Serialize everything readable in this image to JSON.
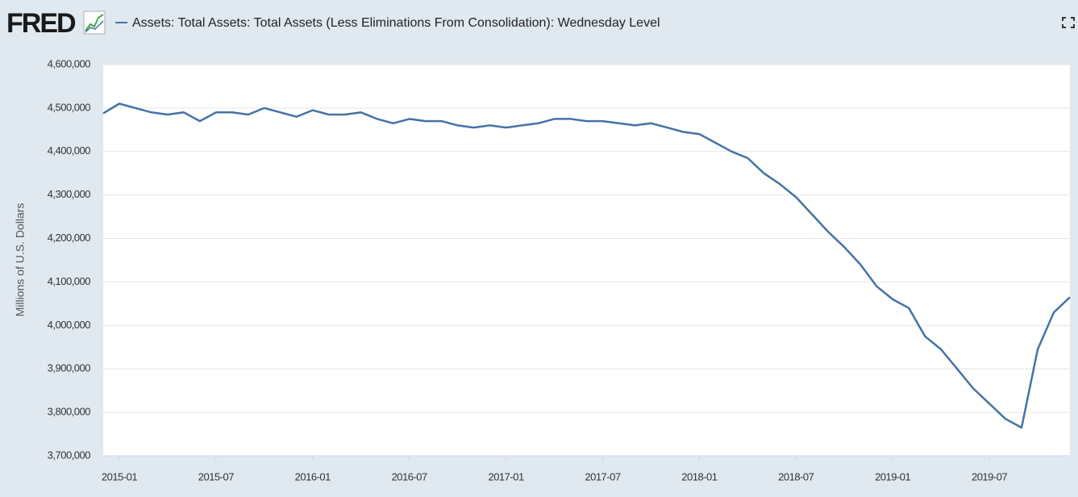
{
  "chart_data": {
    "type": "line",
    "logo": "FRED",
    "y_label": "Millions of U.S. Dollars",
    "x": [
      "2014-12",
      "2015-01",
      "2015-02",
      "2015-03",
      "2015-04",
      "2015-05",
      "2015-06",
      "2015-07",
      "2015-08",
      "2015-09",
      "2015-10",
      "2015-11",
      "2015-12",
      "2016-01",
      "2016-02",
      "2016-03",
      "2016-04",
      "2016-05",
      "2016-06",
      "2016-07",
      "2016-08",
      "2016-09",
      "2016-10",
      "2016-11",
      "2016-12",
      "2017-01",
      "2017-02",
      "2017-03",
      "2017-04",
      "2017-05",
      "2017-06",
      "2017-07",
      "2017-08",
      "2017-09",
      "2017-10",
      "2017-11",
      "2017-12",
      "2018-01",
      "2018-02",
      "2018-03",
      "2018-04",
      "2018-05",
      "2018-06",
      "2018-07",
      "2018-08",
      "2018-09",
      "2018-10",
      "2018-11",
      "2018-12",
      "2019-01",
      "2019-02",
      "2019-03",
      "2019-04",
      "2019-05",
      "2019-06",
      "2019-07",
      "2019-08",
      "2019-09",
      "2019-10",
      "2019-11",
      "2019-12"
    ],
    "series": [
      {
        "name": "Assets: Total Assets: Total Assets (Less Eliminations From Consolidation): Wednesday Level",
        "color": "#4572a7",
        "values": [
          4488000,
          4510000,
          4500000,
          4490000,
          4485000,
          4490000,
          4470000,
          4490000,
          4490000,
          4485000,
          4500000,
          4490000,
          4480000,
          4495000,
          4485000,
          4485000,
          4490000,
          4475000,
          4465000,
          4475000,
          4470000,
          4470000,
          4460000,
          4455000,
          4460000,
          4455000,
          4460000,
          4465000,
          4475000,
          4475000,
          4470000,
          4470000,
          4465000,
          4460000,
          4465000,
          4455000,
          4445000,
          4440000,
          4420000,
          4400000,
          4385000,
          4350000,
          4325000,
          4295000,
          4255000,
          4215000,
          4180000,
          4140000,
          4090000,
          4060000,
          4040000,
          3975000,
          3945000,
          3900000,
          3855000,
          3820000,
          3785000,
          3765000,
          3945000,
          4030000,
          4065000
        ]
      }
    ],
    "xlim": [
      "2014-12",
      "2019-12"
    ],
    "xticks": [
      "2015-01",
      "2015-07",
      "2016-01",
      "2016-07",
      "2017-01",
      "2017-07",
      "2018-01",
      "2018-07",
      "2019-01",
      "2019-07"
    ],
    "ylim": [
      3700000,
      4600000
    ],
    "yticks": [
      {
        "value": 3700000,
        "label": "3,700,000"
      },
      {
        "value": 3800000,
        "label": "3,800,000"
      },
      {
        "value": 3900000,
        "label": "3,900,000"
      },
      {
        "value": 4000000,
        "label": "4,000,000"
      },
      {
        "value": 4100000,
        "label": "4,100,000"
      },
      {
        "value": 4200000,
        "label": "4,200,000"
      },
      {
        "value": 4300000,
        "label": "4,300,000"
      },
      {
        "value": 4400000,
        "label": "4,400,000"
      },
      {
        "value": 4500000,
        "label": "4,500,000"
      },
      {
        "value": 4600000,
        "label": "4,600,000"
      }
    ],
    "grid": true
  }
}
